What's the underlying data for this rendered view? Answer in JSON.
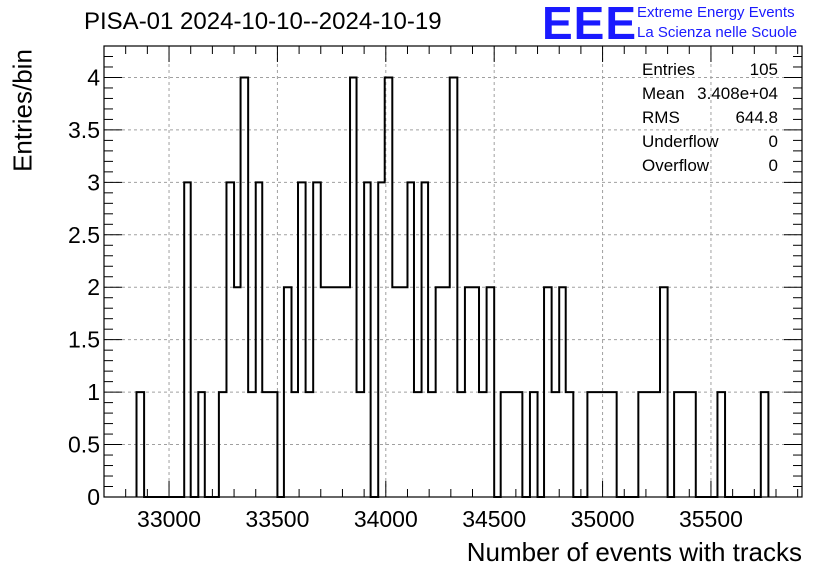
{
  "header": {
    "title": "PISA-01 2024-10-10--2024-10-19",
    "logo_mark": "EEE",
    "logo_line1": "Extreme Energy Events",
    "logo_line2": "La Scienza nelle Scuole"
  },
  "stats": [
    {
      "key": "Entries",
      "value": "105"
    },
    {
      "key": "Mean",
      "value": "3.408e+04"
    },
    {
      "key": "RMS",
      "value": "644.8"
    },
    {
      "key": "Underflow",
      "value": "0"
    },
    {
      "key": "Overflow",
      "value": "0"
    }
  ],
  "colors": {
    "line": "#000000",
    "grid": "#a0a0a0",
    "logo": "#1a1aff"
  },
  "chart_data": {
    "type": "histogram",
    "title": "PISA-01 2024-10-10--2024-10-19",
    "xlabel": "Number of events with tracks",
    "ylabel": "Entries/bin",
    "xlim": [
      32700,
      35920
    ],
    "ylim": [
      0,
      4.3
    ],
    "grid": true,
    "xticks": [
      33000,
      33500,
      34000,
      34500,
      35000,
      35500
    ],
    "yticks": [
      0,
      0.5,
      1,
      1.5,
      2,
      2.5,
      3,
      3.5,
      4
    ],
    "ytick_labels": [
      "0",
      "0.5",
      "1",
      "1.5",
      "2",
      "2.5",
      "3",
      "3.5",
      "4"
    ],
    "steps": [
      [
        32850,
        1
      ],
      [
        32885,
        0
      ],
      [
        33070,
        3
      ],
      [
        33100,
        0
      ],
      [
        33135,
        1
      ],
      [
        33165,
        0
      ],
      [
        33230,
        1
      ],
      [
        33265,
        3
      ],
      [
        33300,
        2
      ],
      [
        33330,
        4
      ],
      [
        33365,
        1
      ],
      [
        33400,
        3
      ],
      [
        33430,
        1
      ],
      [
        33500,
        0
      ],
      [
        33530,
        2
      ],
      [
        33565,
        1
      ],
      [
        33595,
        3
      ],
      [
        33630,
        1
      ],
      [
        33665,
        3
      ],
      [
        33700,
        2
      ],
      [
        33835,
        4
      ],
      [
        33865,
        1
      ],
      [
        33900,
        3
      ],
      [
        33930,
        0
      ],
      [
        33965,
        3
      ],
      [
        33995,
        4
      ],
      [
        34030,
        2
      ],
      [
        34100,
        3
      ],
      [
        34130,
        1
      ],
      [
        34165,
        3
      ],
      [
        34195,
        1
      ],
      [
        34230,
        2
      ],
      [
        34295,
        4
      ],
      [
        34330,
        1
      ],
      [
        34365,
        2
      ],
      [
        34430,
        1
      ],
      [
        34465,
        2
      ],
      [
        34500,
        0
      ],
      [
        34530,
        1
      ],
      [
        34630,
        0
      ],
      [
        34665,
        1
      ],
      [
        34700,
        0
      ],
      [
        34730,
        2
      ],
      [
        34765,
        1
      ],
      [
        34800,
        2
      ],
      [
        34830,
        1
      ],
      [
        34865,
        0
      ],
      [
        34930,
        1
      ],
      [
        35065,
        0
      ],
      [
        35165,
        1
      ],
      [
        35265,
        2
      ],
      [
        35300,
        0
      ],
      [
        35330,
        1
      ],
      [
        35430,
        0
      ],
      [
        35530,
        1
      ],
      [
        35565,
        0
      ],
      [
        35730,
        1
      ],
      [
        35765,
        0
      ]
    ],
    "x_end": 35765
  }
}
